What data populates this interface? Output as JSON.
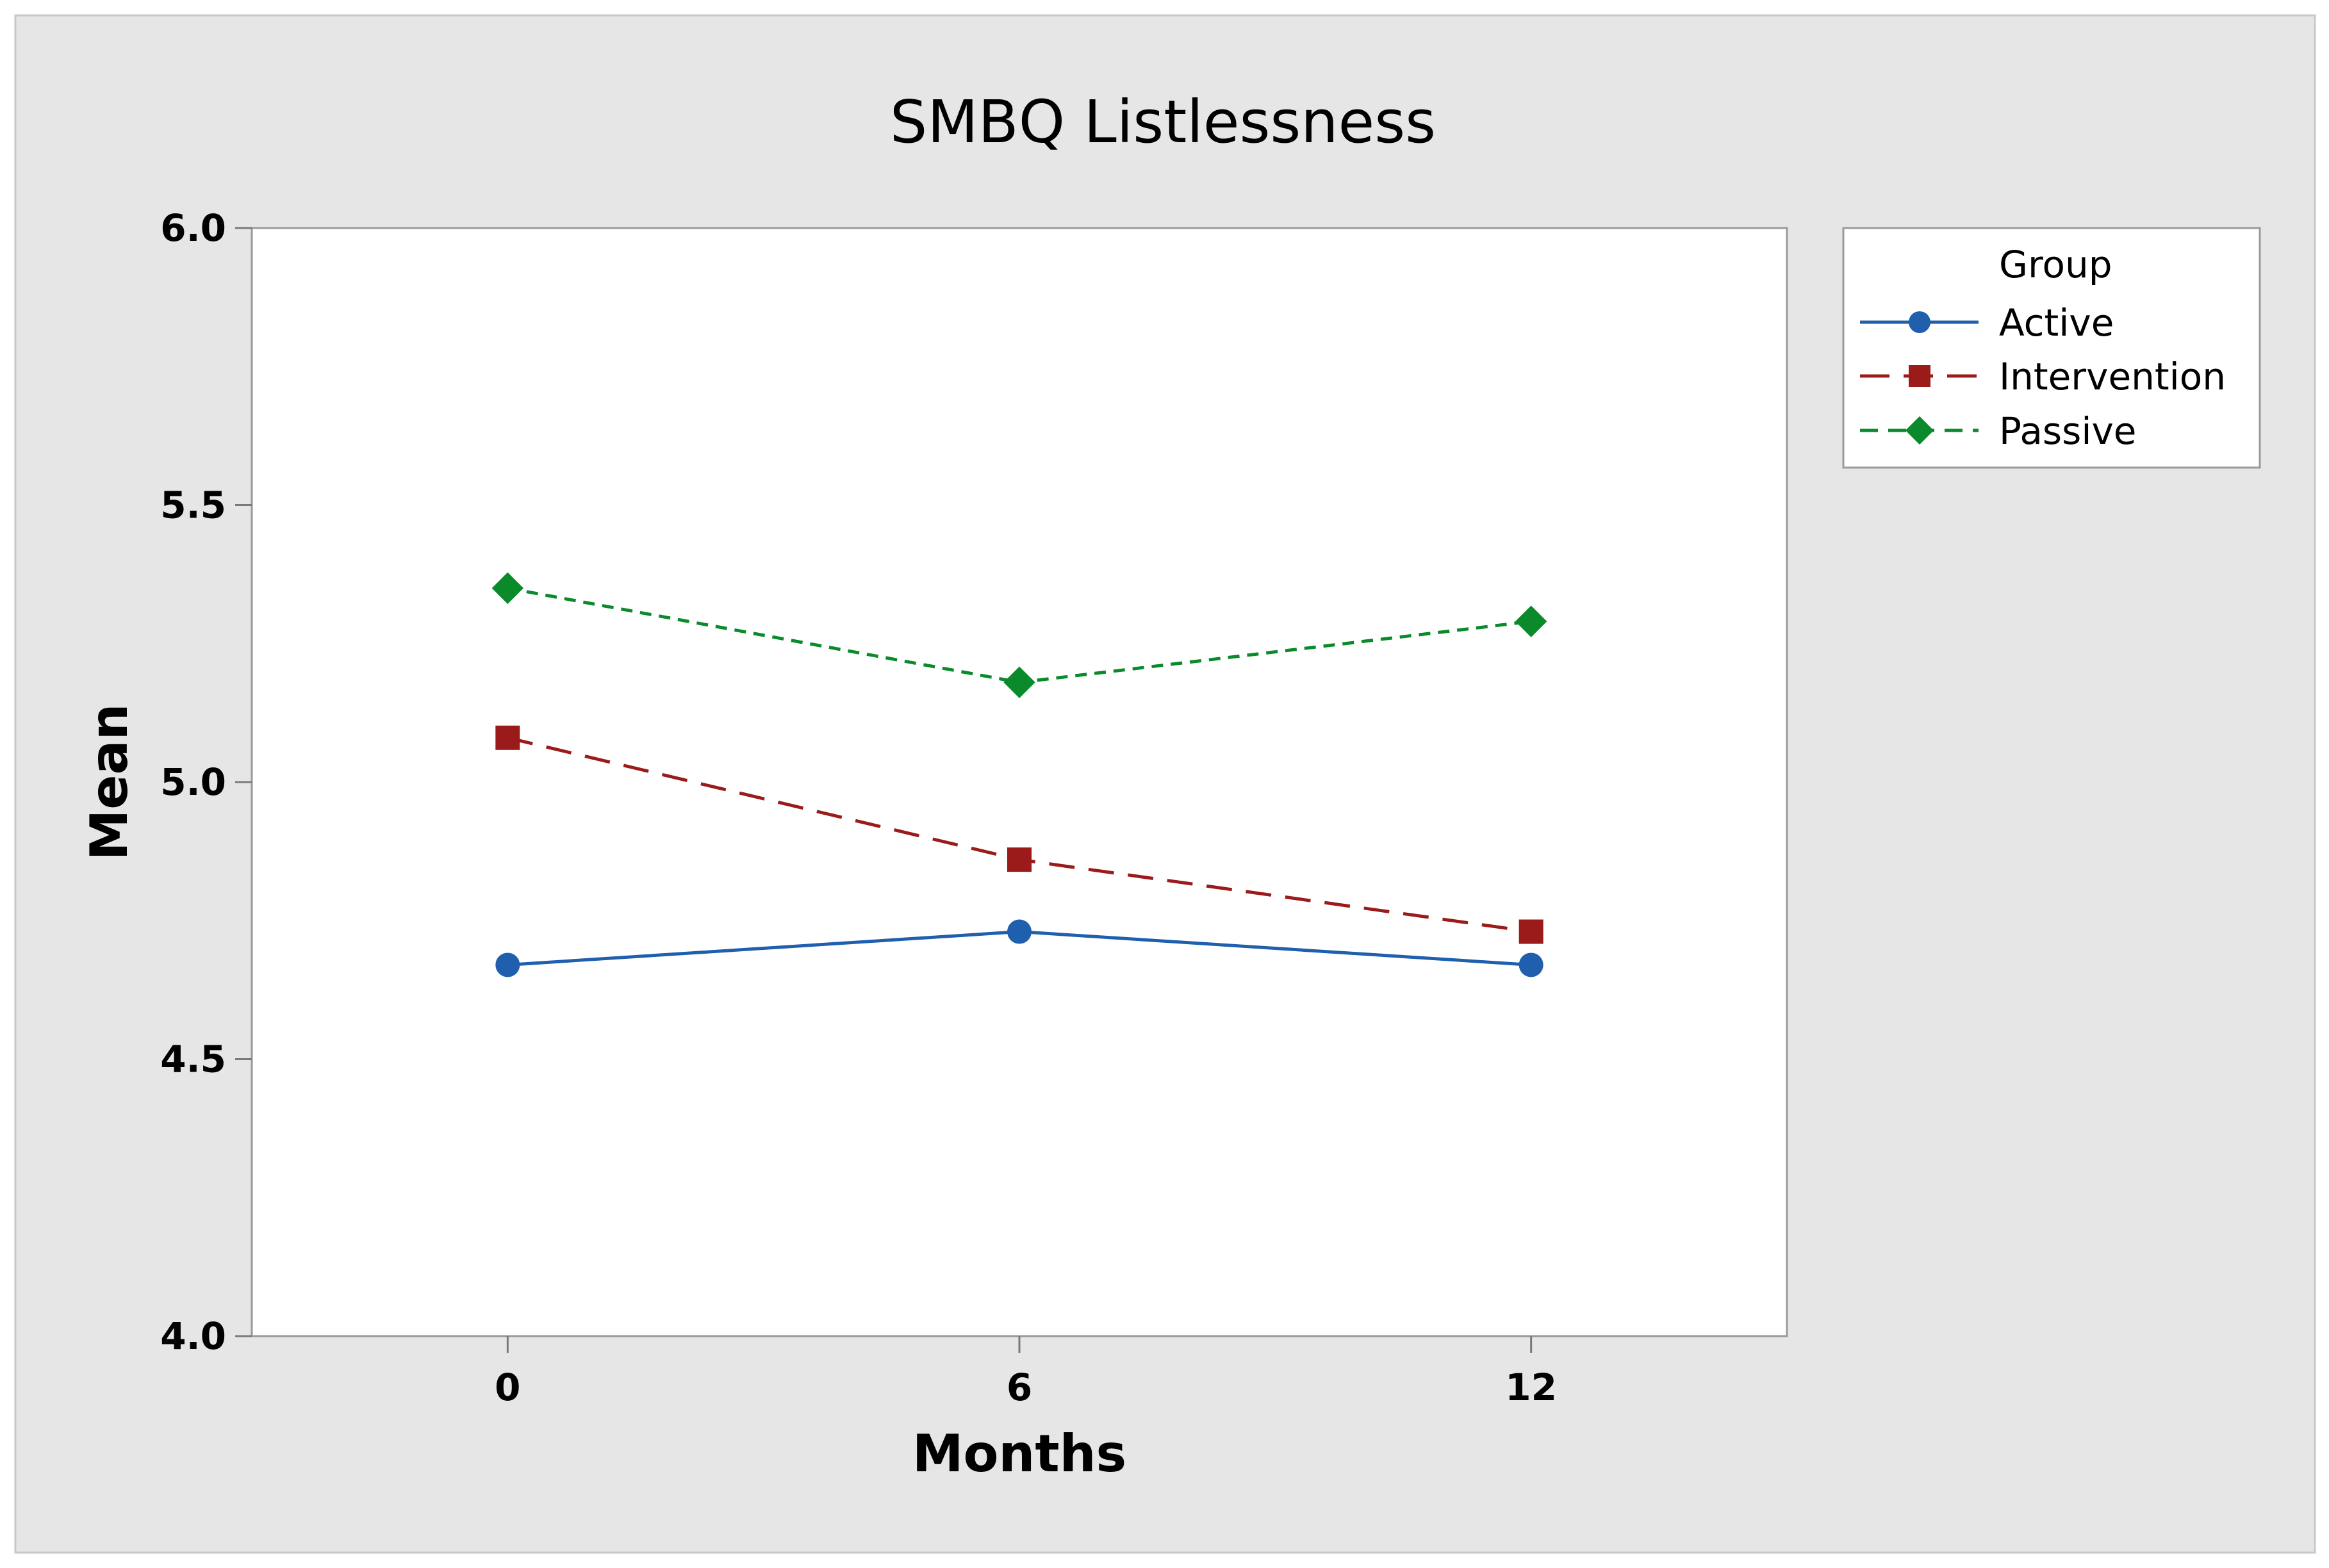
{
  "chart_data": {
    "type": "line",
    "title": "SMBQ Listlessness",
    "xlabel": "Months",
    "ylabel": "Mean",
    "x": [
      0,
      6,
      12
    ],
    "x_tick_labels": [
      "0",
      "6",
      "12"
    ],
    "xlim": [
      -3,
      15
    ],
    "ylim": [
      4.0,
      6.0
    ],
    "y_ticks": [
      4.0,
      4.5,
      5.0,
      5.5,
      6.0
    ],
    "y_tick_labels": [
      "4.0",
      "4.5",
      "5.0",
      "5.5",
      "6.0"
    ],
    "grid": false,
    "legend": {
      "title": "Group",
      "position": "right"
    },
    "series": [
      {
        "name": "Active",
        "values": [
          4.67,
          4.73,
          4.67
        ],
        "color": "#1f5fae",
        "marker": "circle",
        "line": "solid"
      },
      {
        "name": "Intervention",
        "values": [
          5.08,
          4.86,
          4.73
        ],
        "color": "#9b1a1a",
        "marker": "square",
        "line": "dashed"
      },
      {
        "name": "Passive",
        "values": [
          5.35,
          5.18,
          5.29
        ],
        "color": "#0a8a2a",
        "marker": "diamond",
        "line": "dotted"
      }
    ]
  },
  "colors": {
    "outer_background": "#e6e6e6",
    "plot_background": "#ffffff",
    "frame": "#9a9a9a"
  }
}
